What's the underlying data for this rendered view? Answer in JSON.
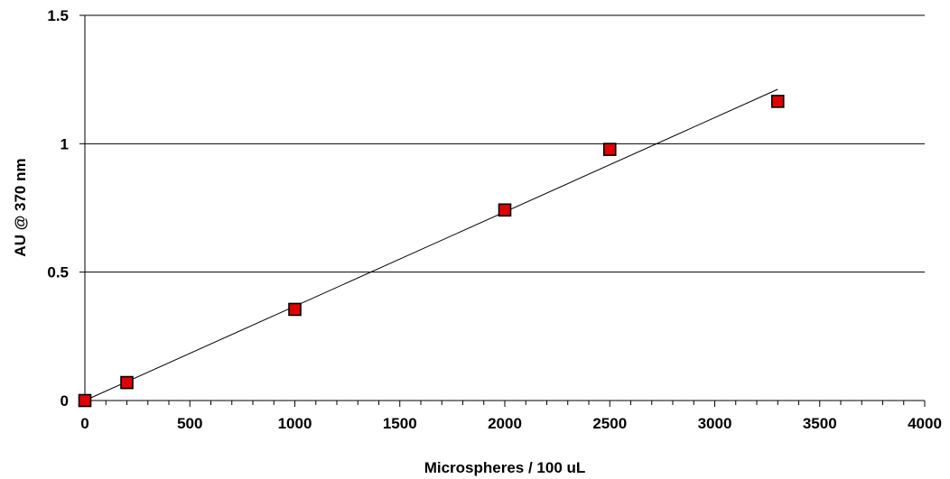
{
  "chart_data": {
    "type": "scatter",
    "xlabel": "Microspheres / 100 uL",
    "ylabel": "AU @ 370 nm",
    "xlim": [
      0,
      4000
    ],
    "ylim": [
      0,
      1.5
    ],
    "x_major_ticks": [
      0,
      500,
      1000,
      1500,
      2000,
      2500,
      3000,
      3500,
      4000
    ],
    "x_tick_labels": [
      "0",
      "500",
      "1000",
      "1500",
      "2000",
      "2500",
      "3000",
      "3500",
      "4000"
    ],
    "x_minor_tick_step": 100,
    "y_major_ticks": [
      0,
      0.5,
      1,
      1.5
    ],
    "y_tick_labels": [
      "0",
      "0.5",
      "1",
      "1.5"
    ],
    "grid": "horizontal major",
    "series": [
      {
        "marker": "square",
        "marker_color": "#e00000",
        "points": [
          {
            "x": 0,
            "y": 0.0
          },
          {
            "x": 200,
            "y": 0.07
          },
          {
            "x": 1000,
            "y": 0.355
          },
          {
            "x": 2000,
            "y": 0.742
          },
          {
            "x": 2500,
            "y": 0.978
          },
          {
            "x": 3300,
            "y": 1.165
          }
        ]
      }
    ],
    "trendline": {
      "type": "linear",
      "x_start": 0,
      "y_start": 0.0,
      "x_end": 3300,
      "y_end": 1.212,
      "color": "#000000"
    }
  }
}
